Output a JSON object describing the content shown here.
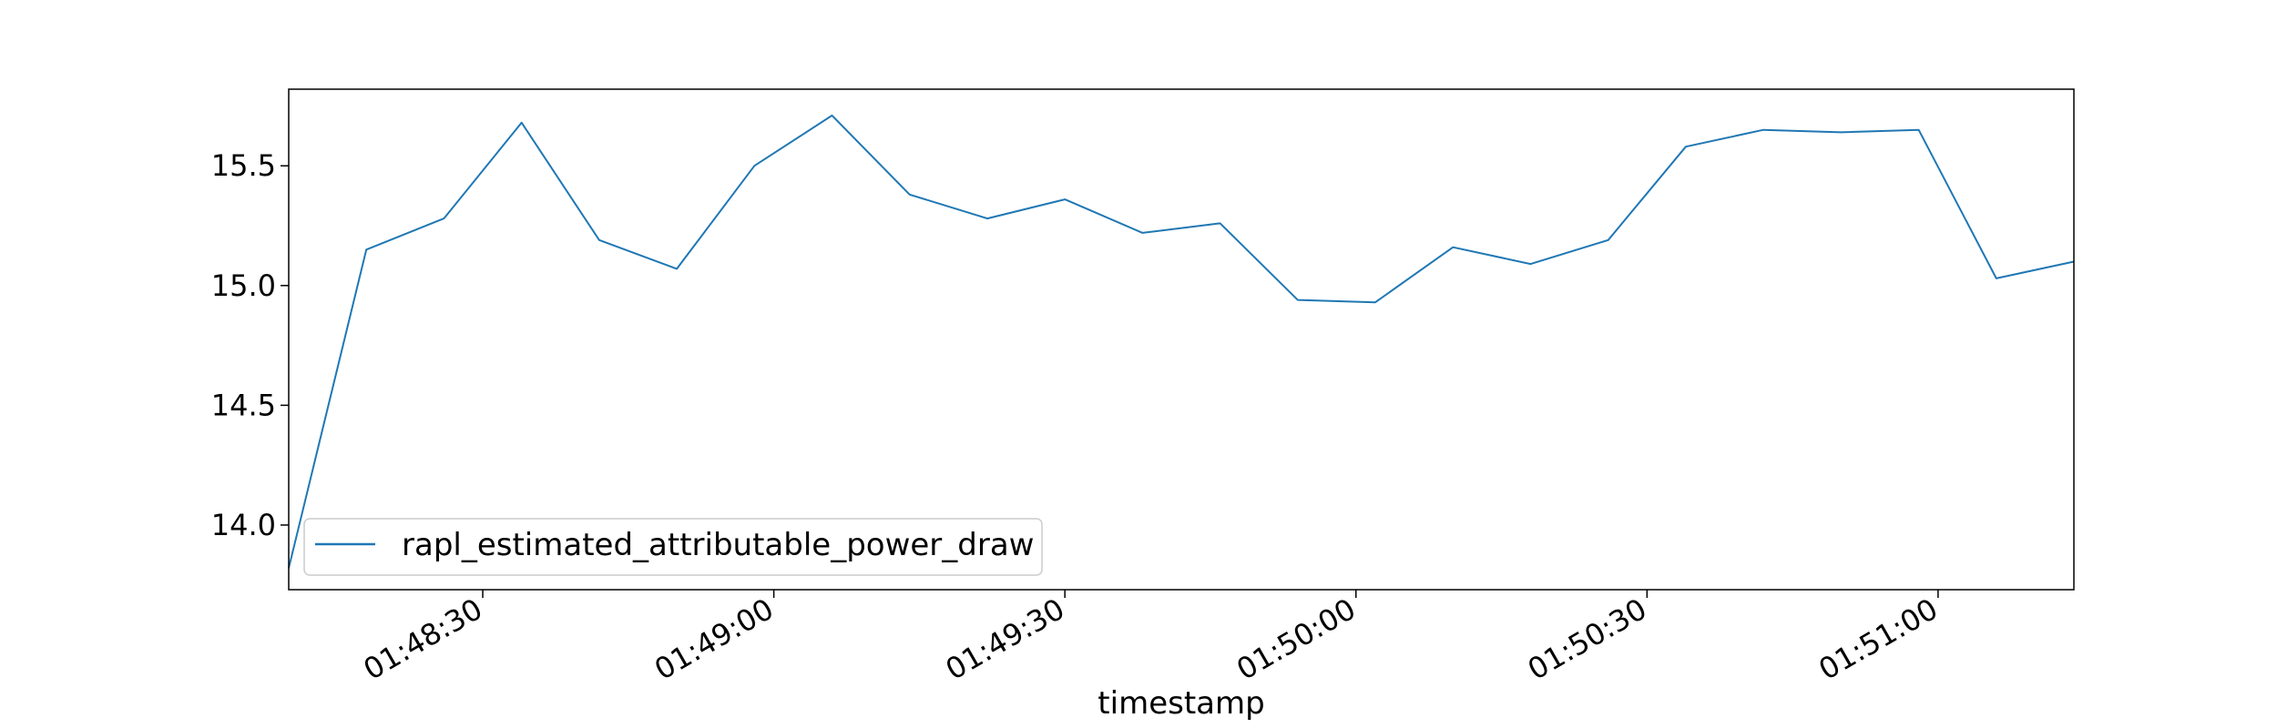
{
  "chart_data": {
    "type": "line",
    "title": "",
    "xlabel": "timestamp",
    "ylabel": "",
    "xlim": [
      "01:48:10",
      "01:51:14"
    ],
    "ylim": [
      13.73,
      15.82
    ],
    "x_ticks": [
      "01:48:30",
      "01:49:00",
      "01:49:30",
      "01:50:00",
      "01:50:30",
      "01:51:00"
    ],
    "y_ticks": [
      "14.0",
      "14.5",
      "15.0",
      "15.5"
    ],
    "grid": false,
    "legend_position": "lower-left",
    "series": [
      {
        "name": "rapl_estimated_attributable_power_draw",
        "color": "#1f77b4",
        "x": [
          "01:48:10",
          "01:48:18",
          "01:48:26",
          "01:48:34",
          "01:48:42",
          "01:48:50",
          "01:48:58",
          "01:49:06",
          "01:49:14",
          "01:49:22",
          "01:49:30",
          "01:49:38",
          "01:49:46",
          "01:49:54",
          "01:50:02",
          "01:50:10",
          "01:50:18",
          "01:50:26",
          "01:50:34",
          "01:50:42",
          "01:50:50",
          "01:50:58",
          "01:51:06",
          "01:51:14"
        ],
        "y": [
          13.82,
          15.15,
          15.28,
          15.68,
          15.19,
          15.07,
          15.5,
          15.71,
          15.38,
          15.28,
          15.36,
          15.22,
          15.26,
          14.94,
          14.93,
          15.16,
          15.09,
          15.19,
          15.58,
          15.65,
          15.64,
          15.65,
          15.03,
          15.1
        ]
      }
    ]
  }
}
